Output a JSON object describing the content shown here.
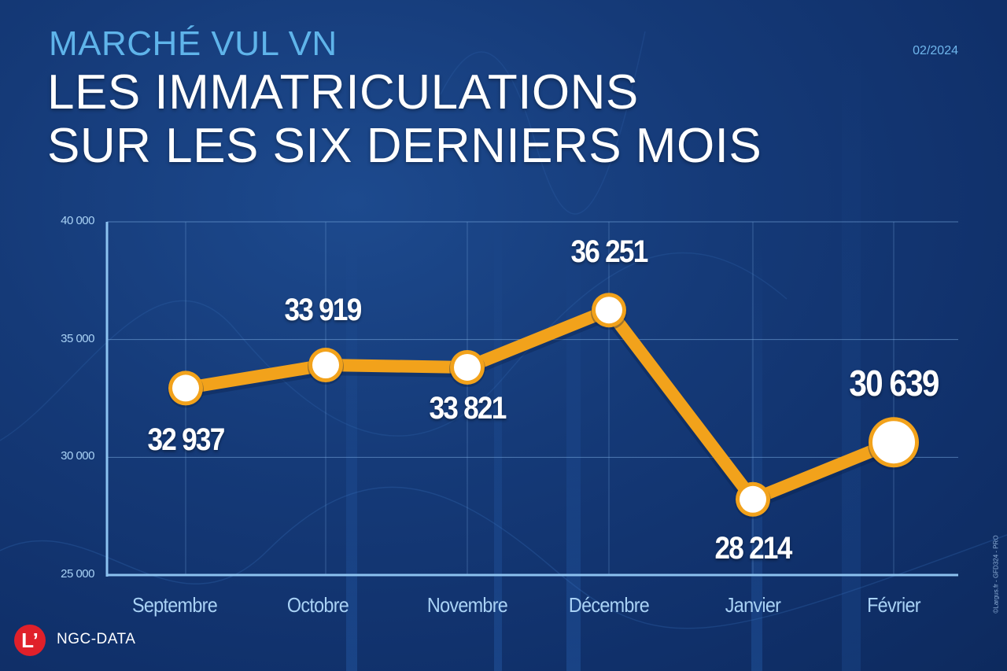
{
  "header": {
    "kicker": "MARCHÉ VUL VN",
    "title_line1": "LES IMMATRICULATIONS",
    "title_line2": "SUR LES SIX DERNIERS MOIS",
    "date": "02/2024"
  },
  "footer": {
    "logo_letter": "L’",
    "brand": "NGC-DATA",
    "credit": "©Largus.fr - GFD324 - PRO"
  },
  "colors": {
    "background": "#153a78",
    "line": "#f2a21b",
    "marker_fill": "#ffffff",
    "axis": "#8cc2f0",
    "kicker": "#5fb4ea",
    "logo_red": "#e0202a"
  },
  "chart_data": {
    "type": "line",
    "title": "Les immatriculations sur les six derniers mois",
    "subtitle": "Marché VUL VN",
    "categories": [
      "Septembre",
      "Octobre",
      "Novembre",
      "Décembre",
      "Janvier",
      "Février"
    ],
    "values": [
      32937,
      33919,
      33821,
      36251,
      28214,
      30639
    ],
    "value_labels": [
      "32 937",
      "33 919",
      "33 821",
      "36 251",
      "28 214",
      "30 639"
    ],
    "xlabel": "",
    "ylabel": "",
    "ylim": [
      25000,
      40000
    ],
    "yticks": [
      40000,
      35000,
      30000,
      25000
    ],
    "ytick_labels": [
      "40 000",
      "35 000",
      "30 000",
      "25 000"
    ],
    "grid": true,
    "legend": "none"
  }
}
